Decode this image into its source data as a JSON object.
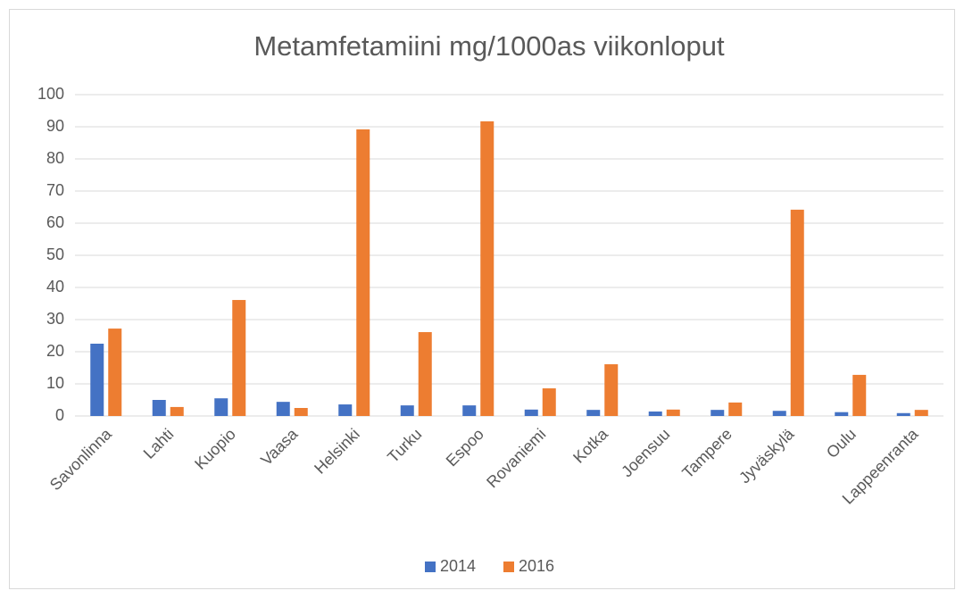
{
  "chart_data": {
    "type": "bar",
    "title": "Metamfetamiini mg/1000as viikonloput",
    "categories": [
      "Savonlinna",
      "Lahti",
      "Kuopio",
      "Vaasa",
      "Helsinki",
      "Turku",
      "Espoo",
      "Rovaniemi",
      "Kotka",
      "Joensuu",
      "Tampere",
      "Jyväskylä",
      "Oulu",
      "Lappeenranta"
    ],
    "series": [
      {
        "name": "2014",
        "color": "#4472c4",
        "values": [
          22.5,
          5.0,
          5.5,
          4.4,
          3.6,
          3.3,
          3.3,
          2.0,
          1.9,
          1.4,
          1.9,
          1.6,
          1.2,
          0.9
        ]
      },
      {
        "name": "2016",
        "color": "#ed7d31",
        "values": [
          27.2,
          2.8,
          36.1,
          2.5,
          89.2,
          26.1,
          91.7,
          8.6,
          16.1,
          2.0,
          4.2,
          64.2,
          12.8,
          1.9
        ]
      }
    ],
    "ylim": [
      0,
      100
    ],
    "yticks": [
      0,
      10,
      20,
      30,
      40,
      50,
      60,
      70,
      80,
      90,
      100
    ],
    "grid": true,
    "legend": "bottom"
  }
}
